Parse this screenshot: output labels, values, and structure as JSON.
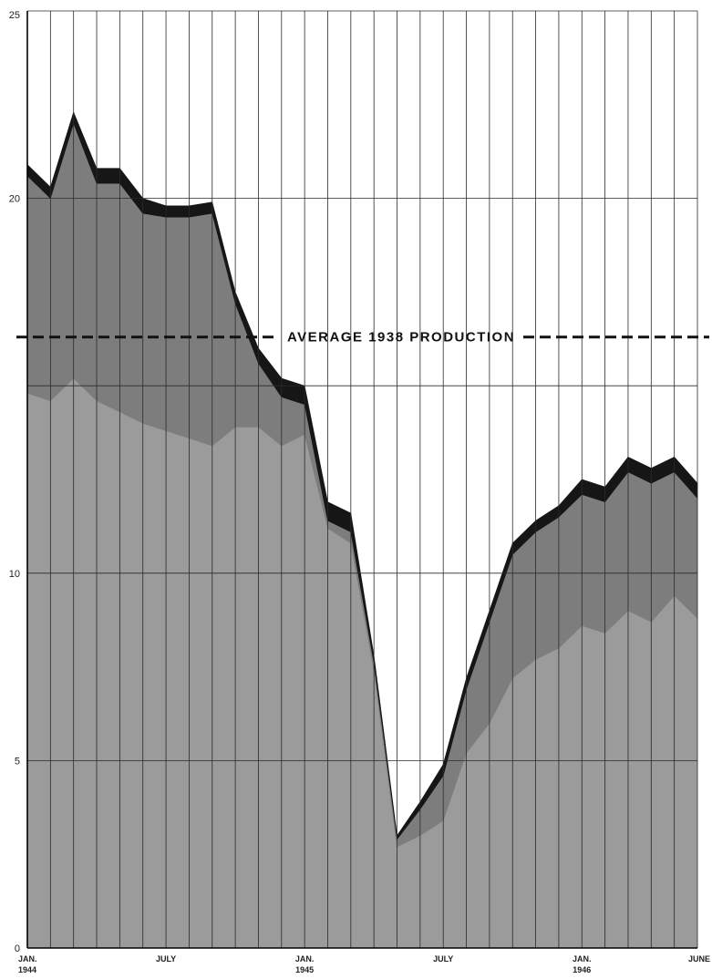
{
  "chart_data": {
    "type": "area",
    "stacked": true,
    "title": "",
    "xlabel": "",
    "ylabel": "",
    "ylim": [
      0,
      25
    ],
    "yticks": [
      0,
      5,
      10,
      20,
      25
    ],
    "grid": true,
    "legend": "none",
    "x": [
      "1944-01",
      "1944-02",
      "1944-03",
      "1944-04",
      "1944-05",
      "1944-06",
      "1944-07",
      "1944-08",
      "1944-09",
      "1944-10",
      "1944-11",
      "1944-12",
      "1945-01",
      "1945-02",
      "1945-03",
      "1945-04",
      "1945-05",
      "1945-06",
      "1945-07",
      "1945-08",
      "1945-09",
      "1945-10",
      "1945-11",
      "1945-12",
      "1946-01",
      "1946-02",
      "1946-03",
      "1946-04",
      "1946-05",
      "1946-06"
    ],
    "x_tick_labels": [
      {
        "x": "1944-01",
        "lines": [
          "JAN.",
          "1944"
        ]
      },
      {
        "x": "1944-07",
        "lines": [
          "JULY"
        ]
      },
      {
        "x": "1945-01",
        "lines": [
          "JAN.",
          "1945"
        ]
      },
      {
        "x": "1945-07",
        "lines": [
          "JULY"
        ]
      },
      {
        "x": "1946-01",
        "lines": [
          "JAN.",
          "1946"
        ]
      },
      {
        "x": "1946-06",
        "lines": [
          "JUNE"
        ]
      }
    ],
    "series": [
      {
        "color": "#9b9b9b",
        "values": [
          14.8,
          14.6,
          15.2,
          14.6,
          14.3,
          14.0,
          13.8,
          13.6,
          13.4,
          13.9,
          13.9,
          13.4,
          13.7,
          11.2,
          10.8,
          7.4,
          2.7,
          3.0,
          3.4,
          5.2,
          6.0,
          7.2,
          7.7,
          8.0,
          8.6,
          8.4,
          9.0,
          8.7,
          9.4,
          8.8
        ]
      },
      {
        "color": "#7d7d7d",
        "values": [
          5.8,
          5.4,
          6.8,
          5.8,
          6.1,
          5.6,
          5.7,
          5.9,
          6.2,
          3.3,
          1.7,
          1.3,
          0.8,
          0.2,
          0.3,
          0.2,
          0.2,
          0.7,
          1.2,
          1.7,
          2.7,
          3.3,
          3.4,
          3.5,
          3.5,
          3.5,
          3.7,
          3.7,
          3.3,
          3.2
        ]
      },
      {
        "color": "#161616",
        "values": [
          0.3,
          0.3,
          0.3,
          0.4,
          0.4,
          0.4,
          0.3,
          0.3,
          0.3,
          0.3,
          0.4,
          0.5,
          0.5,
          0.5,
          0.5,
          0.2,
          0.1,
          0.2,
          0.3,
          0.3,
          0.3,
          0.3,
          0.3,
          0.3,
          0.4,
          0.4,
          0.4,
          0.4,
          0.4,
          0.4
        ]
      }
    ],
    "reference_line": {
      "value": 16.3,
      "label": "AVERAGE 1938 PRODUCTION",
      "style": "dashed"
    }
  }
}
